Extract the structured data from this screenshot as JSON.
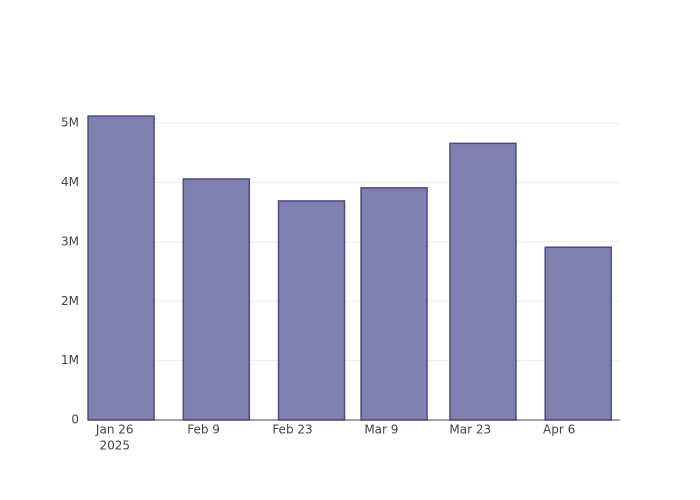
{
  "chart_data": {
    "type": "bar",
    "x": [
      "2025-01-27",
      "2025-02-11",
      "2025-02-26",
      "2025-03-11",
      "2025-03-25",
      "2025-04-09"
    ],
    "values": [
      5120000,
      4060000,
      3690000,
      3910000,
      4660000,
      2910000
    ],
    "color": "#7f7fb0",
    "edge_color": "#4b4b8c",
    "xlim": [
      "2025-01-21T19:00",
      "2025-04-15T14:00"
    ],
    "xticks": [
      {
        "value": "2025-01-26",
        "label": "Jan 26",
        "sublabel": "2025"
      },
      {
        "value": "2025-02-09",
        "label": "Feb 9"
      },
      {
        "value": "2025-02-23",
        "label": "Feb 23"
      },
      {
        "value": "2025-03-09",
        "label": "Mar 9"
      },
      {
        "value": "2025-03-23",
        "label": "Mar 23"
      },
      {
        "value": "2025-04-06",
        "label": "Apr 6"
      }
    ],
    "ylim": [
      0,
      5390000
    ],
    "yticks": [
      0,
      {
        "value": 1000000,
        "label": "1M"
      },
      {
        "value": 2000000,
        "label": "2M"
      },
      {
        "value": 3000000,
        "label": "3M"
      },
      {
        "value": 4000000,
        "label": "4M"
      },
      {
        "value": 5000000,
        "label": "5M"
      }
    ],
    "grid": true
  }
}
